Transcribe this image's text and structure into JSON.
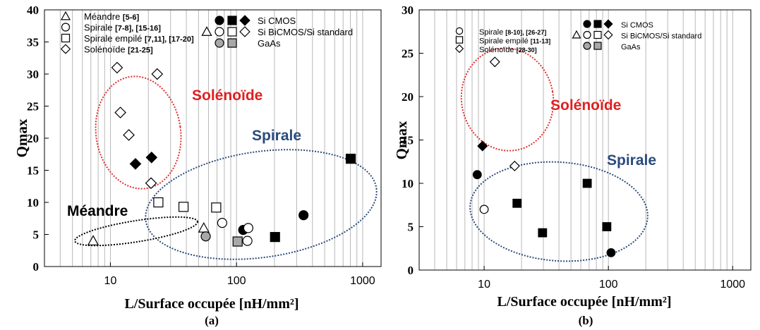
{
  "chart_data": [
    {
      "type": "scatter",
      "panel_label": "(a)",
      "xlabel": "L/Surface occupée [nH/mm²]",
      "ylabel": "Qmax",
      "xscale": "log",
      "xlim": [
        3,
        1400
      ],
      "ylim": [
        0,
        40
      ],
      "xticks": [
        "10",
        "100",
        "1000"
      ],
      "yticks": [
        "0",
        "5",
        "10",
        "15",
        "20",
        "25",
        "30",
        "35",
        "40"
      ],
      "legend": {
        "placement": "top",
        "types": [
          {
            "marker": "triangle",
            "label": "Méandre",
            "ref": "[5-6]"
          },
          {
            "marker": "circle",
            "label": "Spirale",
            "ref": "[7-8], [15-16]"
          },
          {
            "marker": "square",
            "label": "Spirale empilé",
            "ref": "[7,11], [17-20]"
          },
          {
            "marker": "diamond",
            "label": "Solénoïde",
            "ref": "[21-25]"
          }
        ],
        "technologies": [
          {
            "style": "black",
            "markers": [
              "circle",
              "square",
              "diamond"
            ],
            "label": "Si CMOS"
          },
          {
            "style": "open",
            "markers": [
              "triangle",
              "circle",
              "square",
              "diamond"
            ],
            "label": "Si BiCMOS/Si standard"
          },
          {
            "style": "gray",
            "markers": [
              "circle",
              "square"
            ],
            "label": "GaAs"
          }
        ]
      },
      "annotations": [
        {
          "text": "Solénoïde",
          "color": "#e02020"
        },
        {
          "text": "Spirale",
          "color": "#2a4b7c"
        },
        {
          "text": "Méandre",
          "color": "#000000"
        }
      ],
      "points": [
        {
          "marker": "triangle",
          "fill": "open",
          "x": 7.3,
          "y": 4
        },
        {
          "marker": "triangle",
          "fill": "open",
          "x": 55,
          "y": 6
        },
        {
          "marker": "diamond",
          "fill": "open",
          "x": 11.3,
          "y": 31
        },
        {
          "marker": "diamond",
          "fill": "open",
          "x": 23.5,
          "y": 30
        },
        {
          "marker": "diamond",
          "fill": "open",
          "x": 12,
          "y": 24
        },
        {
          "marker": "diamond",
          "fill": "open",
          "x": 14,
          "y": 20.5
        },
        {
          "marker": "diamond",
          "fill": "black",
          "x": 15.8,
          "y": 16
        },
        {
          "marker": "diamond",
          "fill": "black",
          "x": 21.2,
          "y": 17
        },
        {
          "marker": "diamond",
          "fill": "open",
          "x": 21,
          "y": 13
        },
        {
          "marker": "square",
          "fill": "open",
          "x": 24,
          "y": 10
        },
        {
          "marker": "square",
          "fill": "open",
          "x": 38,
          "y": 9.3
        },
        {
          "marker": "square",
          "fill": "open",
          "x": 69,
          "y": 9.2
        },
        {
          "marker": "circle",
          "fill": "open",
          "x": 77,
          "y": 6.8
        },
        {
          "marker": "circle",
          "fill": "gray",
          "x": 57,
          "y": 4.7
        },
        {
          "marker": "circle",
          "fill": "black",
          "x": 113,
          "y": 5.7
        },
        {
          "marker": "circle",
          "fill": "open",
          "x": 124,
          "y": 6
        },
        {
          "marker": "circle",
          "fill": "open",
          "x": 122,
          "y": 4
        },
        {
          "marker": "square",
          "fill": "gray",
          "x": 102,
          "y": 3.9
        },
        {
          "marker": "square",
          "fill": "black",
          "x": 202,
          "y": 4.6
        },
        {
          "marker": "circle",
          "fill": "black",
          "x": 340,
          "y": 8
        },
        {
          "marker": "square",
          "fill": "black",
          "x": 805,
          "y": 16.8
        }
      ]
    },
    {
      "type": "scatter",
      "panel_label": "(b)",
      "xlabel": "L/Surface occupée [nH/mm²]",
      "ylabel": "Qmax",
      "xscale": "log",
      "xlim": [
        3,
        1400
      ],
      "ylim": [
        0,
        30
      ],
      "xticks": [
        "10",
        "100",
        "1000"
      ],
      "yticks": [
        "0",
        "5",
        "10",
        "15",
        "20",
        "25",
        "30"
      ],
      "legend": {
        "placement": "top",
        "types": [
          {
            "marker": "circle",
            "label": "Spirale",
            "ref": "[8-10], [26-27]"
          },
          {
            "marker": "square",
            "label": "Spirale empilé",
            "ref": "[11-13]"
          },
          {
            "marker": "diamond",
            "label": "Solénoïde",
            "ref": "[28-30]"
          }
        ],
        "technologies": [
          {
            "style": "black",
            "markers": [
              "circle",
              "square",
              "diamond"
            ],
            "label": "Si CMOS"
          },
          {
            "style": "open",
            "markers": [
              "triangle",
              "circle",
              "square",
              "diamond"
            ],
            "label": "Si BiCMOS/Si standard"
          },
          {
            "style": "gray",
            "markers": [
              "circle",
              "square"
            ],
            "label": "GaAs"
          }
        ]
      },
      "annotations": [
        {
          "text": "Solénoïde",
          "color": "#e02020"
        },
        {
          "text": "Spirale",
          "color": "#2a4b7c"
        }
      ],
      "points": [
        {
          "marker": "diamond",
          "fill": "open",
          "x": 12.2,
          "y": 24
        },
        {
          "marker": "diamond",
          "fill": "black",
          "x": 9.7,
          "y": 14.3
        },
        {
          "marker": "diamond",
          "fill": "open",
          "x": 17.6,
          "y": 12
        },
        {
          "marker": "circle",
          "fill": "black",
          "x": 8.8,
          "y": 11
        },
        {
          "marker": "circle",
          "fill": "open",
          "x": 10,
          "y": 7
        },
        {
          "marker": "square",
          "fill": "black",
          "x": 18.4,
          "y": 7.7
        },
        {
          "marker": "square",
          "fill": "black",
          "x": 29.5,
          "y": 4.3
        },
        {
          "marker": "square",
          "fill": "black",
          "x": 67.5,
          "y": 10
        },
        {
          "marker": "square",
          "fill": "black",
          "x": 97,
          "y": 5
        },
        {
          "marker": "circle",
          "fill": "black",
          "x": 105,
          "y": 2
        }
      ]
    }
  ]
}
